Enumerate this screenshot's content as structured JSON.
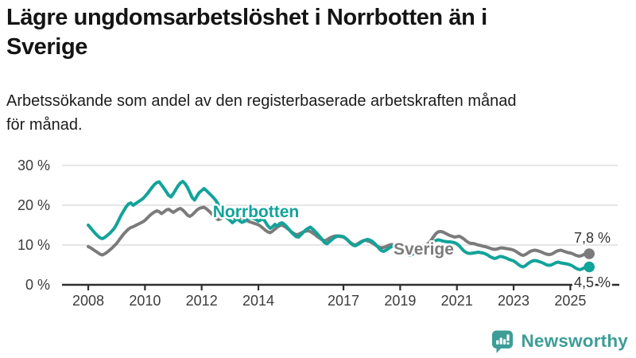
{
  "header": {
    "title_line1": "Lägre ungdomsarbetslöshet i Norrbotten än i",
    "title_line2": "Sverige",
    "subtitle_line1": "Arbetssökande som andel av den registerbaserade arbetskraften månad",
    "subtitle_line2": "för månad."
  },
  "footer": {
    "brand": "Newsworthy"
  },
  "colors": {
    "norrbotten": "#12a39a",
    "sverige": "#7b7b7b",
    "grid": "#dedede",
    "axis": "#2e2e2e",
    "tick_text": "#3c3c3c",
    "end_label_text": "#333333",
    "brand_teal": "#3d9d97"
  },
  "chart_data": {
    "type": "line",
    "title": "Lägre ungdomsarbetslöshet i Norrbotten än i Sverige",
    "subtitle": "Arbetssökande som andel av den registerbaserade arbetskraften månad för månad.",
    "unit": "%",
    "x_start": "2008-01",
    "x_end": "2025-09",
    "x_frequency": "monthly",
    "ylim": [
      0,
      30
    ],
    "grid": true,
    "legend_position": "inline-labels",
    "yticks": [
      {
        "value": 30,
        "label": "30 %"
      },
      {
        "value": 20,
        "label": "20 %"
      },
      {
        "value": 10,
        "label": "10 %"
      },
      {
        "value": 0,
        "label": "0 %"
      }
    ],
    "xticks": [
      {
        "year": 2008,
        "label": "2008"
      },
      {
        "year": 2010,
        "label": "2010"
      },
      {
        "year": 2012,
        "label": "2012"
      },
      {
        "year": 2014,
        "label": "2014"
      },
      {
        "year": 2017,
        "label": "2017"
      },
      {
        "year": 2019,
        "label": "2019"
      },
      {
        "year": 2021,
        "label": "2021"
      },
      {
        "year": 2023,
        "label": "2023"
      },
      {
        "year": 2025,
        "label": "2025"
      }
    ],
    "series": [
      {
        "name": "Sverige",
        "color": "#7b7b7b",
        "end_value": 7.8,
        "end_label": "7,8 %",
        "values": [
          9.6,
          9.3,
          8.9,
          8.5,
          8.1,
          7.7,
          7.5,
          7.8,
          8.2,
          8.7,
          9.2,
          9.8,
          10.4,
          11.2,
          12.0,
          12.8,
          13.4,
          14.0,
          14.4,
          14.6,
          14.9,
          15.2,
          15.5,
          15.8,
          16.2,
          16.8,
          17.4,
          17.9,
          18.3,
          18.6,
          18.4,
          17.9,
          18.3,
          18.8,
          19.0,
          18.6,
          18.2,
          18.6,
          19.0,
          19.2,
          18.8,
          18.2,
          17.5,
          17.2,
          17.6,
          18.2,
          18.8,
          19.2,
          19.4,
          19.5,
          19.1,
          18.6,
          18.0,
          17.4,
          16.8,
          16.4,
          16.6,
          17.0,
          17.4,
          17.6,
          17.4,
          17.1,
          16.8,
          16.6,
          16.8,
          16.9,
          16.6,
          16.2,
          15.9,
          15.7,
          15.5,
          15.3,
          15.1,
          14.7,
          14.2,
          13.7,
          13.3,
          13.1,
          13.5,
          14.0,
          14.5,
          14.9,
          15.0,
          14.7,
          14.3,
          13.8,
          13.3,
          12.9,
          12.6,
          12.7,
          13.0,
          13.3,
          13.5,
          13.6,
          13.4,
          13.0,
          12.6,
          12.1,
          11.7,
          11.3,
          11.1,
          11.3,
          11.7,
          12.0,
          12.2,
          12.3,
          12.2,
          12.1,
          12.0,
          11.6,
          11.1,
          10.6,
          10.2,
          10.0,
          10.3,
          10.7,
          11.0,
          11.2,
          11.1,
          10.9,
          10.6,
          10.2,
          9.8,
          9.5,
          9.3,
          9.4,
          9.6,
          9.9,
          10.1,
          10.1,
          9.9,
          9.7,
          9.5,
          9.2,
          8.9,
          8.7,
          8.6,
          8.8,
          9.2,
          9.5,
          9.7,
          9.8,
          9.8,
          10.0,
          10.4,
          11.1,
          12.0,
          12.8,
          13.3,
          13.4,
          13.3,
          13.0,
          12.7,
          12.4,
          12.2,
          12.0,
          12.1,
          12.2,
          11.9,
          11.5,
          11.0,
          10.6,
          10.4,
          10.4,
          10.2,
          10.0,
          9.9,
          9.7,
          9.6,
          9.4,
          9.2,
          9.0,
          8.9,
          9.0,
          9.2,
          9.3,
          9.2,
          9.1,
          9.0,
          8.9,
          8.7,
          8.4,
          8.0,
          7.6,
          7.4,
          7.6,
          8.0,
          8.4,
          8.6,
          8.7,
          8.6,
          8.4,
          8.2,
          7.9,
          7.7,
          7.6,
          7.7,
          8.0,
          8.4,
          8.6,
          8.7,
          8.5,
          8.3,
          8.1,
          8.0,
          7.8,
          7.5,
          7.3,
          7.2,
          7.4,
          7.7,
          7.9,
          7.8
        ]
      },
      {
        "name": "Norrbotten",
        "color": "#12a39a",
        "end_value": 4.5,
        "end_label": "4,5 %",
        "values": [
          15.0,
          14.3,
          13.6,
          12.9,
          12.3,
          11.8,
          11.6,
          11.9,
          12.4,
          12.9,
          13.5,
          14.2,
          15.2,
          16.4,
          17.6,
          18.6,
          19.6,
          20.3,
          20.6,
          20.0,
          20.4,
          20.8,
          21.2,
          21.6,
          22.2,
          22.9,
          23.7,
          24.5,
          25.2,
          25.7,
          25.9,
          25.1,
          24.3,
          23.4,
          22.5,
          22.1,
          22.9,
          23.9,
          24.9,
          25.6,
          26.0,
          25.4,
          24.5,
          23.2,
          21.9,
          21.3,
          22.3,
          23.2,
          23.7,
          24.2,
          23.7,
          23.1,
          22.5,
          21.9,
          21.2,
          20.2,
          19.1,
          18.1,
          17.2,
          16.7,
          16.2,
          15.6,
          16.1,
          16.6,
          16.1,
          15.7,
          15.9,
          16.3,
          16.7,
          16.9,
          16.7,
          16.4,
          16.0,
          16.3,
          16.6,
          15.8,
          14.8,
          14.2,
          14.6,
          15.2,
          14.8,
          15.4,
          15.6,
          15.2,
          14.6,
          13.9,
          13.2,
          12.6,
          12.1,
          12.0,
          12.6,
          13.2,
          13.8,
          14.2,
          14.5,
          14.0,
          13.4,
          12.8,
          12.1,
          11.4,
          10.6,
          10.3,
          10.8,
          11.3,
          11.8,
          12.1,
          12.3,
          12.2,
          12.1,
          11.7,
          11.1,
          10.5,
          10.0,
          9.8,
          10.1,
          10.5,
          10.9,
          11.2,
          11.4,
          11.3,
          11.0,
          10.5,
          9.9,
          9.2,
          8.6,
          8.4,
          8.7,
          9.1,
          9.5,
          9.8,
          9.9,
          9.7,
          9.4,
          9.0,
          8.4,
          7.8,
          7.4,
          7.6,
          8.0,
          8.4,
          8.8,
          9.2,
          9.4,
          9.6,
          9.9,
          10.3,
          10.8,
          11.1,
          11.3,
          11.2,
          11.0,
          10.9,
          10.8,
          10.8,
          10.7,
          10.6,
          10.3,
          9.8,
          9.1,
          8.5,
          8.1,
          7.9,
          7.9,
          8.0,
          8.1,
          8.2,
          8.1,
          8.0,
          7.8,
          7.5,
          7.1,
          6.8,
          6.6,
          6.8,
          7.1,
          7.1,
          6.9,
          6.7,
          6.4,
          6.2,
          6.0,
          5.6,
          5.1,
          4.7,
          4.5,
          4.8,
          5.3,
          5.7,
          6.0,
          6.1,
          6.0,
          5.8,
          5.6,
          5.3,
          5.0,
          4.9,
          5.0,
          5.3,
          5.6,
          5.7,
          5.5,
          5.4,
          5.3,
          5.2,
          5.0,
          4.7,
          4.3,
          4.0,
          3.8,
          4.0,
          4.3,
          4.5,
          4.5
        ]
      }
    ]
  }
}
